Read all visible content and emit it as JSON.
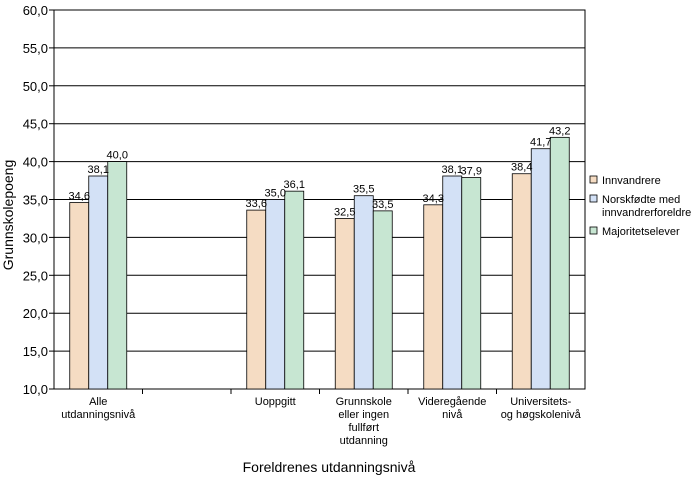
{
  "chart_data": {
    "type": "bar",
    "xlabel": "Foreldrenes utdanningsnivå",
    "ylabel": "Grunnskolepoeng",
    "ylim": [
      10,
      60
    ],
    "yticks": [
      "10,0",
      "15,0",
      "20,0",
      "25,0",
      "30,0",
      "35,0",
      "40,0",
      "45,0",
      "50,0",
      "55,0",
      "60,0"
    ],
    "grid": true,
    "legend_position": "right",
    "categories": [
      [
        "Alle",
        "utdanningsnivå"
      ],
      [],
      [
        "Uoppgitt"
      ],
      [
        "Grunnskole",
        "eller ingen",
        "fullført",
        "utdanning"
      ],
      [
        "Videregående",
        "nivå"
      ],
      [
        "Universitets-",
        "og høgskolenivå"
      ]
    ],
    "series": [
      {
        "name": "Innvandrere",
        "color": "#f5dcc3",
        "values": [
          34.6,
          null,
          33.6,
          32.5,
          34.3,
          38.4
        ],
        "labels": [
          "34,6",
          "",
          "33,6",
          "32,5",
          "34,3",
          "38,4"
        ]
      },
      {
        "name": "Norskfødte med innvandrerforeldre",
        "name_lines": [
          "Norskfødte med",
          "innvandrerforeldre"
        ],
        "color": "#d3e1f6",
        "values": [
          38.1,
          null,
          35.0,
          35.5,
          38.1,
          41.7
        ],
        "labels": [
          "38,1",
          "",
          "35,0",
          "35,5",
          "38,1",
          "41,7"
        ]
      },
      {
        "name": "Majoritetselever",
        "color": "#c7e6d2",
        "values": [
          40.0,
          null,
          36.1,
          33.5,
          37.9,
          43.2
        ],
        "labels": [
          "40,0",
          "",
          "36,1",
          "33,5",
          "37,9",
          "43,2"
        ]
      }
    ]
  }
}
